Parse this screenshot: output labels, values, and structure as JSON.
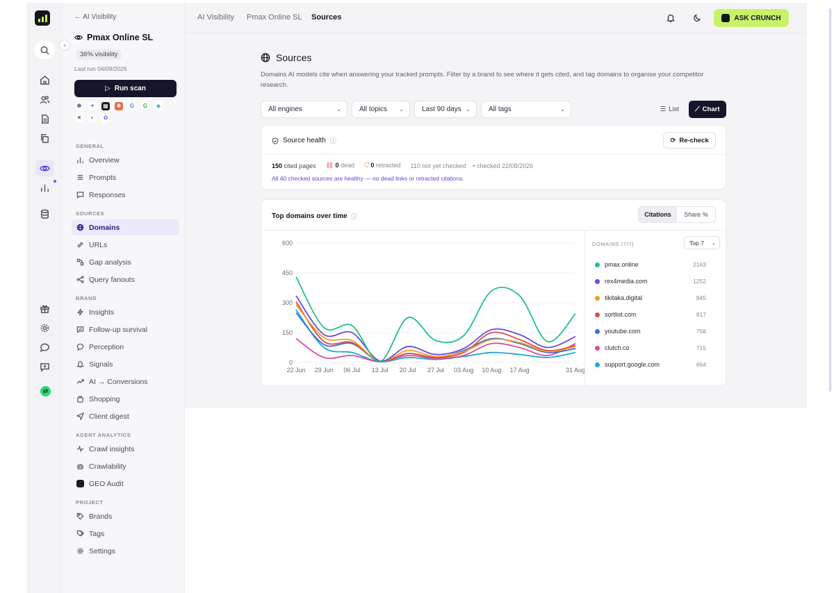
{
  "nav": {
    "back_label": "← AI Visibility",
    "project_name": "Pmax Online SL",
    "visibility_badge": "36% visibility",
    "last_run": "Last run 04/09/2026",
    "run_scan_label": "Run scan",
    "engines": [
      {
        "name": "chatgpt-icon",
        "glyph": "❁",
        "bg": "#ffffff",
        "fg": "#222222"
      },
      {
        "name": "gemini-icon",
        "glyph": "✦",
        "bg": "#ffffff",
        "fg": "#3b7bf0"
      },
      {
        "name": "grok-icon",
        "glyph": "▦",
        "bg": "#1a1a1a",
        "fg": "#ffffff"
      },
      {
        "name": "claude-icon",
        "glyph": "✺",
        "bg": "#e4704c",
        "fg": "#ffffff"
      },
      {
        "name": "google-icon",
        "glyph": "G",
        "bg": "#ffffff",
        "fg": "#4285f4"
      },
      {
        "name": "google-ai-icon",
        "glyph": "G",
        "bg": "#ffffff",
        "fg": "#34a853"
      },
      {
        "name": "perplexity-icon",
        "glyph": "◈",
        "bg": "#ffffff",
        "fg": "#1c8ea0"
      },
      {
        "name": "mistral-icon",
        "glyph": "✕",
        "bg": "#ffffff",
        "fg": "#222222"
      },
      {
        "name": "copilot-icon",
        "glyph": "◐",
        "bg": "#ffffff",
        "fg": "#3a6ee8"
      },
      {
        "name": "meta-icon",
        "glyph": "✿",
        "bg": "#ffffff",
        "fg": "#8a4ce8"
      }
    ],
    "sections": {
      "general": "GENERAL",
      "sources": "SOURCES",
      "brand": "BRAND",
      "agent": "AGENT ANALYTICS",
      "project": "PROJECT"
    },
    "items": {
      "overview": "Overview",
      "prompts": "Prompts",
      "responses": "Responses",
      "domains": "Domains",
      "urls": "URLs",
      "gap": "Gap analysis",
      "fanouts": "Query fanouts",
      "insights": "Insights",
      "followup": "Follow-up survival",
      "perception": "Perception",
      "signals": "Signals",
      "conversions": "AI → Conversions",
      "shopping": "Shopping",
      "digest": "Client digest",
      "crawl": "Crawl insights",
      "crawlability": "Crawlability",
      "geo": "GEO Audit",
      "brands": "Brands",
      "tags": "Tags",
      "settings": "Settings"
    }
  },
  "topbar": {
    "breadcrumbs": [
      "AI Visibility",
      "Pmax Online SL",
      "Sources"
    ],
    "ask_label": "ASK CRUNCH"
  },
  "page": {
    "title": "Sources",
    "description": "Domains AI models cite when answering your tracked prompts. Filter by a brand to see where it gets cited, and tag domains to organise your competitor research."
  },
  "filters": {
    "engines": "All engines",
    "topics": "All topics",
    "range": "Last 90 days",
    "tags": "All tags"
  },
  "view": {
    "list": "List",
    "chart": "Chart",
    "selected": "Chart"
  },
  "health": {
    "title": "Source health",
    "recheck": "Re-check",
    "cited_count": "150",
    "cited_label": "cited pages",
    "dead_count": "0",
    "dead_label": "dead",
    "retracted_count": "0",
    "retracted_label": "retracted",
    "not_checked": "110 not yet checked",
    "checked": "• checked 22/08/2026",
    "note": "All 40 checked sources are healthy — no dead links or retracted citations."
  },
  "chart_card": {
    "title": "Top domains over time",
    "metric_citations": "Citations",
    "metric_share": "Share %",
    "legend_head": "DOMAINS (7/7)",
    "topn": "Top 7"
  },
  "chart_data": {
    "type": "line",
    "title": "Top domains over time",
    "ylim": [
      0,
      600
    ],
    "yticks": [
      "600",
      "450",
      "300",
      "150",
      "0"
    ],
    "xticks": [
      "22 Jun",
      "29 Jun",
      "06 Jul",
      "13 Jul",
      "20 Jul",
      "27 Jul",
      "03 Aug",
      "10 Aug",
      "17 Aug",
      "31 Aug"
    ],
    "x": [
      "22 Jun",
      "29 Jun",
      "06 Jul",
      "13 Jul",
      "20 Jul",
      "27 Jul",
      "03 Aug",
      "10 Aug",
      "17 Aug",
      "24 Aug",
      "31 Aug"
    ],
    "series": [
      {
        "name": "pmax.online",
        "total": "2163",
        "color": "#1fbf8f",
        "values": [
          430,
          175,
          185,
          5,
          225,
          110,
          135,
          360,
          335,
          105,
          245
        ]
      },
      {
        "name": "rex4media.com",
        "total": "1252",
        "color": "#6a4ce0",
        "values": [
          335,
          140,
          150,
          8,
          80,
          40,
          70,
          165,
          140,
          75,
          130
        ]
      },
      {
        "name": "tikitaka.digital",
        "total": "845",
        "color": "#f0a020",
        "values": [
          290,
          125,
          110,
          6,
          60,
          30,
          55,
          115,
          100,
          55,
          80
        ]
      },
      {
        "name": "sortlist.com",
        "total": "817",
        "color": "#e04a4a",
        "values": [
          305,
          105,
          100,
          6,
          45,
          25,
          50,
          150,
          115,
          60,
          85
        ]
      },
      {
        "name": "youtube.com",
        "total": "758",
        "color": "#3b6fe0",
        "values": [
          250,
          90,
          95,
          5,
          45,
          25,
          60,
          120,
          95,
          50,
          70
        ]
      },
      {
        "name": "clutch.co",
        "total": "715",
        "color": "#e04a9a",
        "values": [
          120,
          25,
          35,
          4,
          35,
          20,
          35,
          95,
          75,
          35,
          95
        ]
      },
      {
        "name": "support.google.com",
        "total": "664",
        "color": "#1ba8d8",
        "values": [
          265,
          75,
          50,
          4,
          25,
          15,
          30,
          50,
          40,
          25,
          50
        ]
      }
    ]
  }
}
